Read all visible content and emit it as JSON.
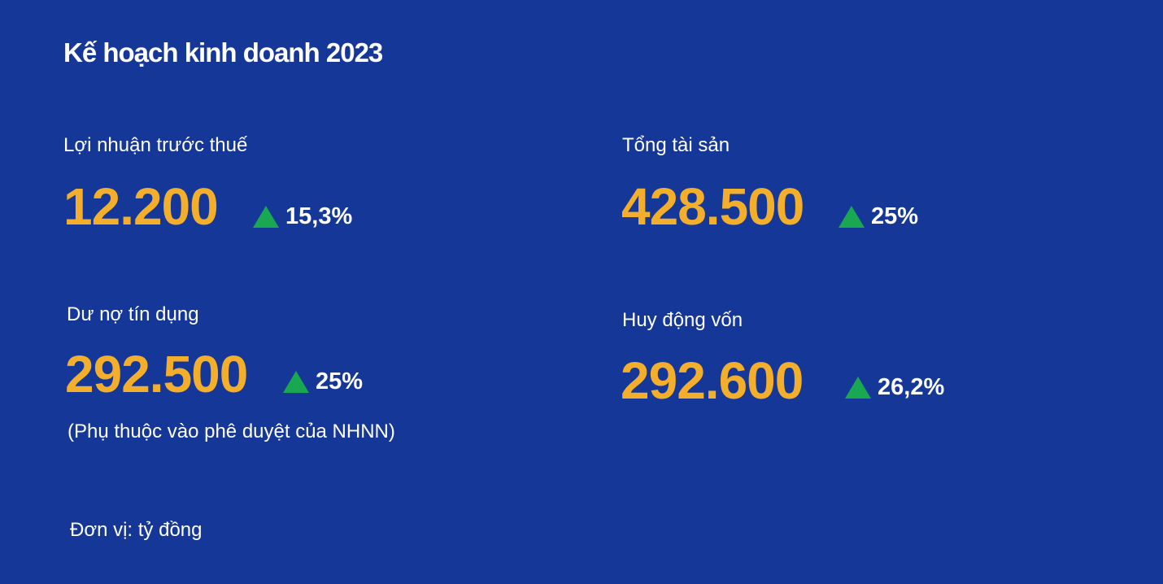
{
  "title": "Kế hoạch kinh doanh 2023",
  "colors": {
    "background": "#153797",
    "value": "#f3ae2b",
    "up_arrow": "#1aa752"
  },
  "metrics": [
    {
      "label": "Lợi nhuận trước thuế",
      "value": "12.200",
      "change": "15,3%",
      "icon": "triangle-up-icon"
    },
    {
      "label": "Tổng tài sản",
      "value": "428.500",
      "change": "25%",
      "icon": "triangle-up-icon"
    },
    {
      "label": "Dư nợ tín dụng",
      "value": "292.500",
      "change": "25%",
      "icon": "triangle-up-icon",
      "note": "(Phụ thuộc vào phê duyệt của NHNN)"
    },
    {
      "label": "Huy động vốn",
      "value": "292.600",
      "change": "26,2%",
      "icon": "triangle-up-icon"
    }
  ],
  "unit": "Đơn vị: tỷ đồng"
}
